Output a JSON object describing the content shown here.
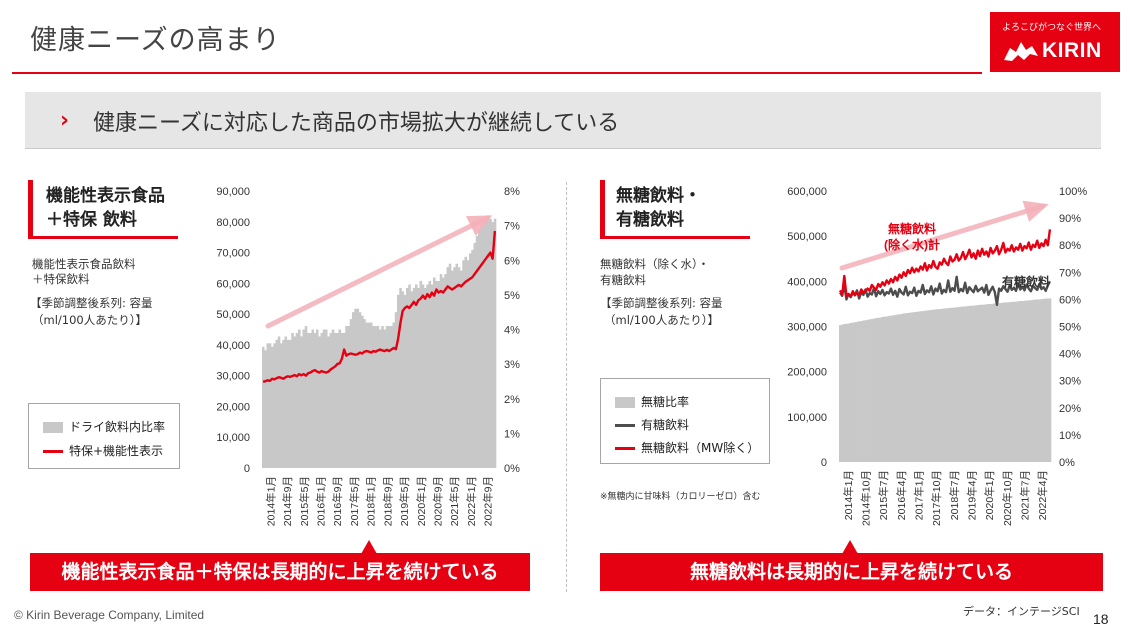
{
  "page": {
    "title": "健康ニーズの高まり",
    "banner": "健康ニーズに対応した商品の市場拡大が継続している",
    "logo_tagline": "よろこびがつなぐ世界へ",
    "logo_word": "KIRIN",
    "copyright": "© Kirin Beverage Company, Limited",
    "source": "データ：インテージSCI",
    "page_number": "18"
  },
  "left": {
    "heading_line1": "機能性表示食品",
    "heading_line2": "＋特保 飲料",
    "note_line1": "機能性表示食品飲料",
    "note_line2": "＋特保飲料",
    "note_line3": "【季節調整後系列: 容量",
    "note_line4": "（ml/100人あたり）】",
    "legend": [
      "ドライ飲料内比率",
      "特保+機能性表示"
    ],
    "callout": "機能性表示食品＋特保は長期的に上昇を続けている"
  },
  "right": {
    "heading_line1": "無糖飲料・",
    "heading_line2": "有糖飲料",
    "note_line1": "無糖飲料（除く水）・",
    "note_line2": "有糖飲料",
    "note_line3": "【季節調整後系列: 容量",
    "note_line4": "（ml/100人あたり）】",
    "legend": [
      "無糖比率",
      "有糖飲料",
      "無糖飲料（MW除く）"
    ],
    "footnote": "※無糖内に甘味料（カロリーゼロ）含む",
    "callout": "無糖飲料は長期的に上昇を続けている"
  },
  "colors": {
    "accent_red": "#e50012",
    "bar_gray": "#c8c8c8",
    "dark_gray": "#4d4d4d",
    "arrow_pink": "#f4b0b8"
  },
  "chart_data": [
    {
      "type": "line",
      "title": "機能性表示食品＋特保 飲料",
      "x_start": "2014-01",
      "x_end": "2022-09",
      "x_ticks": [
        "2014年1月",
        "2014年9月",
        "2015年5月",
        "2016年1月",
        "2016年9月",
        "2017年5月",
        "2018年1月",
        "2018年9月",
        "2019年5月",
        "2020年1月",
        "2020年9月",
        "2021年5月",
        "2022年1月",
        "2022年9月"
      ],
      "y_left_ticks": [
        "0",
        "10,000",
        "20,000",
        "30,000",
        "40,000",
        "50,000",
        "60,000",
        "70,000",
        "80,000",
        "90,000"
      ],
      "y_left_range": [
        0,
        90000
      ],
      "y_right_ticks": [
        "0%",
        "1%",
        "2%",
        "3%",
        "4%",
        "5%",
        "6%",
        "7%",
        "8%"
      ],
      "y_right_range": [
        0,
        8
      ],
      "grid": false,
      "series": [
        {
          "name": "ドライ飲料内比率",
          "kind": "bar",
          "axis": "right",
          "color": "#c8c8c8",
          "values": [
            3.5,
            3.4,
            3.6,
            3.6,
            3.5,
            3.6,
            3.7,
            3.8,
            3.6,
            3.7,
            3.8,
            3.7,
            3.7,
            3.9,
            3.8,
            3.9,
            4.0,
            3.8,
            4.0,
            4.1,
            3.9,
            3.9,
            4.0,
            3.9,
            4.0,
            3.8,
            3.9,
            4.0,
            4.0,
            3.8,
            3.9,
            4.0,
            3.9,
            3.9,
            4.0,
            3.9,
            3.9,
            4.1,
            4.1,
            4.3,
            4.5,
            4.6,
            4.6,
            4.5,
            4.4,
            4.3,
            4.2,
            4.2,
            4.2,
            4.1,
            4.1,
            4.1,
            4.0,
            4.1,
            4.0,
            4.1,
            4.1,
            4.1,
            4.2,
            4.5,
            5.0,
            5.2,
            5.1,
            5.0,
            5.2,
            5.3,
            5.1,
            5.2,
            5.3,
            5.2,
            5.4,
            5.3,
            5.2,
            5.3,
            5.4,
            5.3,
            5.5,
            5.4,
            5.4,
            5.6,
            5.5,
            5.6,
            5.8,
            5.9,
            5.7,
            5.8,
            5.9,
            5.8,
            5.7,
            6.0,
            6.1,
            6.0,
            6.2,
            6.3,
            6.5,
            6.7,
            6.9,
            7.0,
            7.1,
            7.2,
            7.3,
            7.2,
            7.1,
            7.2
          ]
        },
        {
          "name": "特保+機能性表示",
          "kind": "line",
          "axis": "left",
          "color": "#e50012",
          "values": [
            28000,
            28200,
            28500,
            28300,
            29000,
            28800,
            29200,
            29500,
            29300,
            29000,
            29500,
            29800,
            29600,
            29900,
            30200,
            29800,
            30500,
            30100,
            30500,
            30000,
            30800,
            31000,
            31500,
            31800,
            31300,
            31000,
            31500,
            31200,
            31000,
            31300,
            32000,
            32500,
            33000,
            33800,
            34000,
            35500,
            38500,
            36500,
            37000,
            37200,
            37000,
            36800,
            37000,
            37500,
            37200,
            37800,
            38000,
            37800,
            37500,
            38000,
            37800,
            38200,
            38500,
            38200,
            38000,
            38400,
            38000,
            38500,
            39000,
            38600,
            42000,
            47000,
            51000,
            52000,
            52500,
            52000,
            53000,
            54000,
            53000,
            54500,
            55000,
            56000,
            55000,
            56500,
            55500,
            57000,
            56000,
            58000,
            57000,
            57500,
            57000,
            58000,
            59000,
            58500,
            58000,
            58500,
            59000,
            59500,
            59000,
            59800,
            60500,
            61000,
            61500,
            62000,
            63000,
            64000,
            65000,
            66000,
            67000,
            68000,
            69000,
            70000,
            68000,
            77000
          ]
        }
      ]
    },
    {
      "type": "line",
      "title": "無糖飲料・有糖飲料",
      "x_start": "2014-01",
      "x_end": "2022-04",
      "x_ticks": [
        "2014年1月",
        "2014年10月",
        "2015年7月",
        "2016年4月",
        "2017年1月",
        "2017年10月",
        "2018年7月",
        "2019年4月",
        "2020年1月",
        "2020年10月",
        "2021年7月",
        "2022年4月"
      ],
      "y_left_ticks": [
        "0",
        "100,000",
        "200,000",
        "300,000",
        "400,000",
        "500,000",
        "600,000"
      ],
      "y_left_range": [
        0,
        600000
      ],
      "y_right_ticks": [
        "0%",
        "10%",
        "20%",
        "30%",
        "40%",
        "50%",
        "60%",
        "70%",
        "80%",
        "90%",
        "100%"
      ],
      "y_right_range": [
        0,
        100
      ],
      "grid": false,
      "annotations": [
        "無糖飲料",
        "(除く水)計",
        "有糖飲料"
      ],
      "series": [
        {
          "name": "無糖比率",
          "kind": "bar",
          "axis": "right",
          "color": "#c8c8c8",
          "values": [
            50.5,
            50.7,
            50.9,
            51.0,
            51.1,
            51.3,
            51.4,
            51.6,
            51.7,
            51.9,
            52.0,
            52.2,
            52.3,
            52.5,
            52.6,
            52.8,
            52.9,
            53.1,
            53.2,
            53.3,
            53.5,
            53.6,
            53.7,
            53.9,
            54.0,
            54.1,
            54.3,
            54.4,
            54.5,
            54.6,
            54.8,
            54.9,
            55.0,
            55.1,
            55.2,
            55.3,
            55.4,
            55.5,
            55.6,
            55.7,
            55.8,
            55.9,
            56.0,
            56.1,
            56.2,
            56.3,
            56.4,
            56.4,
            56.5,
            56.6,
            56.7,
            56.8,
            56.9,
            56.9,
            57.0,
            57.1,
            57.2,
            57.3,
            57.4,
            57.4,
            57.5,
            57.6,
            57.7,
            57.7,
            57.8,
            57.9,
            58.0,
            58.0,
            58.1,
            58.2,
            58.3,
            58.3,
            58.4,
            58.5,
            58.6,
            58.6,
            58.7,
            58.8,
            58.9,
            58.9,
            59.0,
            59.1,
            59.1,
            59.2,
            59.3,
            59.4,
            59.4,
            59.5,
            59.6,
            59.6,
            59.7,
            59.8,
            59.9,
            60.0,
            60.0,
            60.1,
            60.2,
            60.3,
            60.3,
            60.4
          ]
        },
        {
          "name": "有糖飲料",
          "kind": "line",
          "axis": "left",
          "color": "#4d4d4d",
          "values": [
            375000,
            368000,
            392000,
            360000,
            372000,
            365000,
            374000,
            369000,
            380000,
            362000,
            376000,
            370000,
            382000,
            366000,
            374000,
            371000,
            385000,
            367000,
            378000,
            372000,
            381000,
            369000,
            376000,
            373000,
            384000,
            370000,
            379000,
            366000,
            383000,
            375000,
            371000,
            388000,
            369000,
            377000,
            374000,
            386000,
            368000,
            379000,
            375000,
            392000,
            372000,
            380000,
            376000,
            389000,
            371000,
            384000,
            378000,
            395000,
            373000,
            381000,
            376000,
            402000,
            377000,
            385000,
            379000,
            410000,
            376000,
            383000,
            378000,
            397000,
            374000,
            387000,
            381000,
            376000,
            390000,
            378000,
            382000,
            386000,
            375000,
            392000,
            370000,
            380000,
            388000,
            376000,
            348000,
            384000,
            379000,
            389000,
            383000,
            377000,
            391000,
            381000,
            386000,
            379000,
            395000,
            382000,
            388000,
            380000,
            393000,
            384000,
            378000,
            390000,
            385000,
            381000,
            394000,
            383000,
            387000,
            379000,
            391000,
            400000
          ]
        },
        {
          "name": "無糖飲料（MW除く）",
          "kind": "line",
          "axis": "left",
          "color": "#e50012",
          "values": [
            380000,
            370000,
            412000,
            368000,
            372000,
            366000,
            378000,
            370000,
            374000,
            369000,
            382000,
            375000,
            378000,
            384000,
            379000,
            392000,
            386000,
            381000,
            394000,
            388000,
            398000,
            391000,
            402000,
            395000,
            405000,
            398000,
            410000,
            402000,
            415000,
            408000,
            420000,
            412000,
            425000,
            418000,
            430000,
            420000,
            428000,
            422000,
            433000,
            426000,
            440000,
            424000,
            436000,
            430000,
            445000,
            432000,
            428000,
            442000,
            437000,
            450000,
            441000,
            436000,
            455000,
            444000,
            448000,
            460000,
            446000,
            452000,
            465000,
            449000,
            458000,
            470000,
            453000,
            462000,
            450000,
            468000,
            456000,
            472000,
            459000,
            466000,
            455000,
            474000,
            462000,
            468000,
            478000,
            460000,
            470000,
            485000,
            464000,
            472000,
            468000,
            480000,
            466000,
            475000,
            470000,
            483000,
            468000,
            478000,
            473000,
            486000,
            470000,
            481000,
            476000,
            490000,
            474000,
            484000,
            478000,
            492000,
            480000,
            515000
          ]
        }
      ]
    }
  ]
}
